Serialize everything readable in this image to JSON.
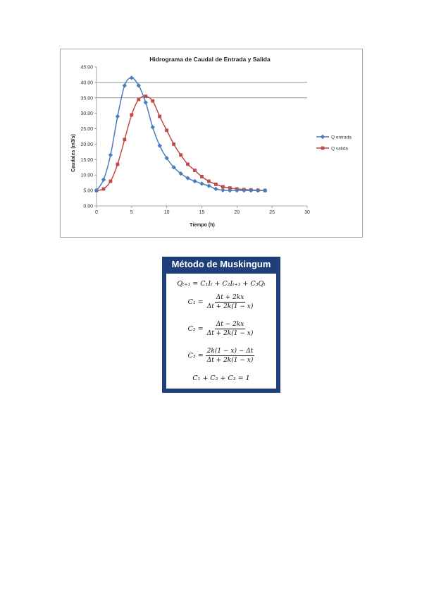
{
  "chart_data": {
    "type": "line",
    "title": "Hidrograma de Caudal de Entrada y Salida",
    "xlabel": "Tiempo (h)",
    "ylabel": "Caudales (m3/s)",
    "xlim": [
      0,
      30
    ],
    "ylim": [
      0,
      45
    ],
    "xticks": [
      "0",
      "5",
      "10",
      "15",
      "20",
      "25",
      "30"
    ],
    "yticks": [
      "0.00",
      "5.00",
      "10.00",
      "15.00",
      "20.00",
      "25.00",
      "30.00",
      "35.00",
      "40.00",
      "45.00"
    ],
    "reference_lines_y": [
      35,
      40
    ],
    "legend_position": "right",
    "series": [
      {
        "name": "Q entrada",
        "color": "#4a7ebb",
        "marker": "diamond",
        "x": [
          0,
          1,
          2,
          3,
          4,
          5,
          6,
          7,
          8,
          9,
          10,
          11,
          12,
          13,
          14,
          15,
          16,
          17,
          18,
          19,
          20,
          21,
          22,
          23,
          24
        ],
        "values": [
          5.0,
          8.5,
          16.5,
          29.0,
          39.0,
          41.5,
          39.0,
          33.5,
          25.5,
          19.5,
          15.5,
          12.5,
          10.5,
          9.0,
          8.0,
          7.2,
          6.5,
          5.5,
          5.1,
          5.0,
          5.0,
          5.0,
          5.0,
          5.0,
          5.0
        ]
      },
      {
        "name": "Q salida",
        "color": "#be4b48",
        "marker": "square",
        "x": [
          0,
          1,
          2,
          3,
          4,
          5,
          6,
          7,
          8,
          9,
          10,
          11,
          12,
          13,
          14,
          15,
          16,
          17,
          18,
          19,
          20,
          21,
          22,
          23,
          24
        ],
        "values": [
          5.0,
          5.5,
          8.0,
          13.5,
          21.5,
          29.5,
          34.5,
          35.5,
          34.0,
          29.0,
          24.5,
          20.0,
          16.5,
          13.5,
          11.5,
          9.5,
          8.0,
          7.0,
          6.2,
          5.8,
          5.5,
          5.3,
          5.2,
          5.1,
          5.0
        ]
      }
    ]
  },
  "muskingum": {
    "title": "Método de Muskingum",
    "eq1": "Qₜ₊₁ = C₁Iₜ + C₂Iₜ₊₁ + C₃Qₜ",
    "c1_lhs": "C₁ =",
    "c1_num": "Δt + 2kx",
    "c1_den": "Δt + 2k(1 − x)",
    "c2_lhs": "C₂ =",
    "c2_num": "Δt − 2kx",
    "c2_den": "Δt + 2k(1 − x)",
    "c3_lhs": "C₃ =",
    "c3_num": "2k(1 − x) − Δt",
    "c3_den": "Δt + 2k(1 − x)",
    "sum": "C₁ + C₂ + C₃ = 1"
  }
}
